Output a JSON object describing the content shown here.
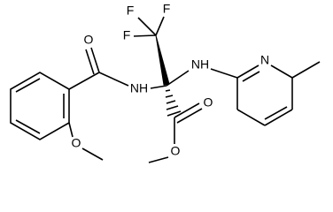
{
  "labels": [
    "F",
    "F",
    "F",
    "O",
    "NH",
    "NH",
    "N",
    "O",
    "O",
    "O"
  ]
}
